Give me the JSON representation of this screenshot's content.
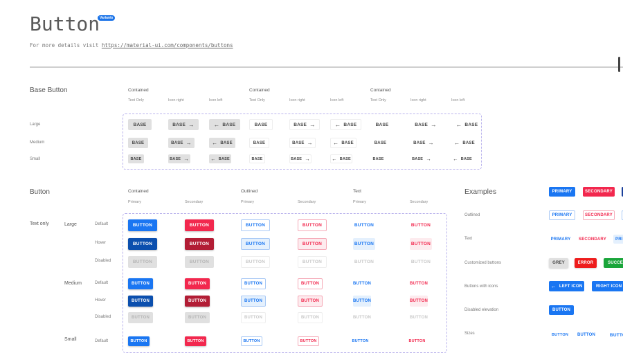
{
  "header": {
    "title": "Button",
    "badge": "Variants",
    "subtitle_prefix": "For more details visit ",
    "link": "https://material-ui.com/components/buttons"
  },
  "base_button": {
    "title": "Base Button",
    "group_headers": [
      "Contained",
      "Contained",
      "Contained"
    ],
    "sub_headers": [
      "Text Only",
      "Icon right",
      "Icon left",
      "Text Only",
      "Icon right",
      "Icon left",
      "Text Only",
      "Icon right",
      "Icon left"
    ],
    "row_labels": [
      "Large",
      "Medium",
      "Small"
    ],
    "button_label": "BASE",
    "arrow_right": "→",
    "arrow_left": "←"
  },
  "button": {
    "title": "Button",
    "group_headers": [
      "Contained",
      "Outlined",
      "Text"
    ],
    "sub_headers": [
      "Primary",
      "Secondary",
      "Primary",
      "Secondary",
      "Primary",
      "Secondary"
    ],
    "group_label": "Text only",
    "sizes": [
      "Large",
      "Medium",
      "Small"
    ],
    "states": [
      "Default",
      "Hover",
      "Disabled"
    ],
    "button_label": "BUTTON"
  },
  "examples": {
    "title": "Examples",
    "row_labels": [
      "Outlined",
      "Text",
      "Customized buttons",
      "Buttons with icons",
      "Disabled elevation",
      "Sizes"
    ],
    "contained": [
      "PRIMARY",
      "SECONDARY"
    ],
    "outlined": [
      "PRIMARY",
      "SECONDARY"
    ],
    "text": [
      "PRIMARY",
      "SECONDARY",
      "PRI"
    ],
    "customized": [
      "GREY",
      "ERROR",
      "SUCCESS"
    ],
    "icons": [
      "LEFT ICON",
      "RIGHT ICON"
    ],
    "disabled_elevation": "BUTTON",
    "sizes": [
      "BUTTON",
      "BUTTON",
      "BUTTON"
    ]
  },
  "colors": {
    "primary": "#1a76f2",
    "primary_hover": "#0b4fae",
    "secondary": "#f2284e",
    "secondary_hover": "#b21d35",
    "disabled_bg": "#e0e0e0",
    "disabled_text": "#b5b5b5",
    "grey": "#e0e0e0",
    "error": "#ee1c1c",
    "success": "#1aa53a",
    "dark": "#1a3f9a",
    "badge": "#1a73e8"
  }
}
